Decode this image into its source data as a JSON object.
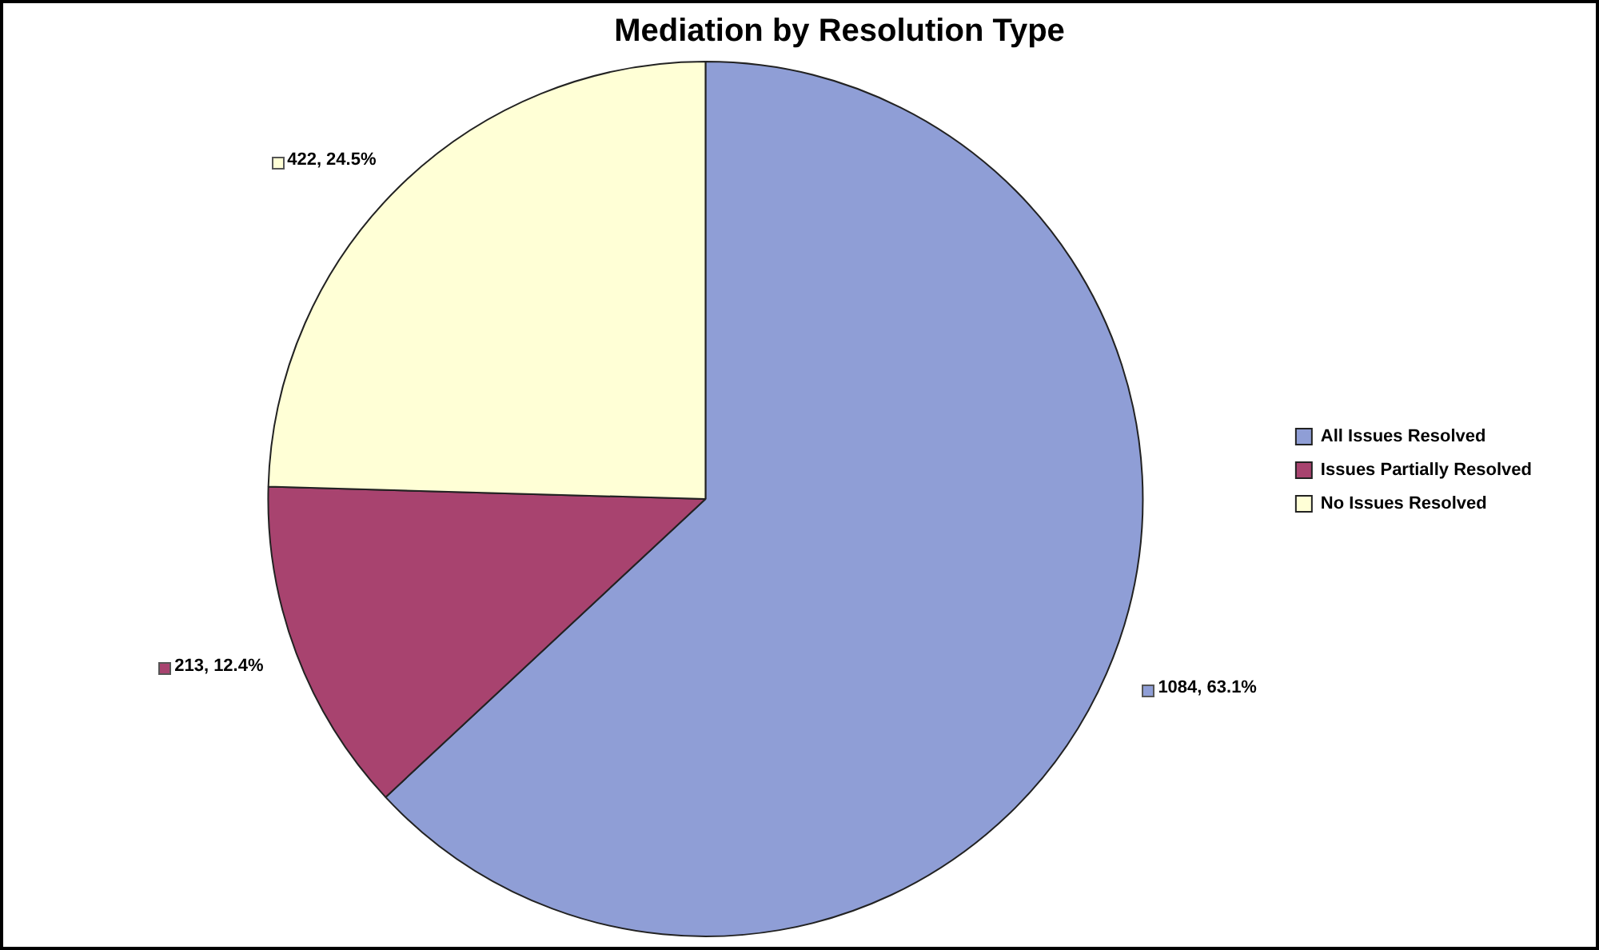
{
  "chart_data": {
    "type": "pie",
    "title": "Mediation by Resolution Type",
    "categories": [
      "All Issues Resolved",
      "Issues Partially Resolved",
      "No Issues Resolved"
    ],
    "values": [
      1084,
      213,
      422
    ],
    "colors": [
      "#8f9ed6",
      "#a8436f",
      "#ffffd6"
    ],
    "value_labels": [
      "1084, 63.1%",
      "213, 12.4%",
      "422, 24.5%"
    ],
    "legend": "right"
  }
}
